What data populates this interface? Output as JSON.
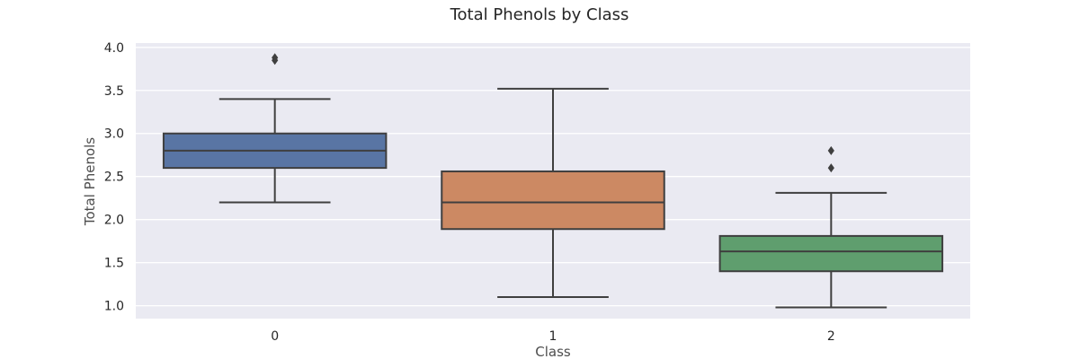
{
  "chart_data": {
    "type": "box",
    "title": "Total Phenols by Class",
    "xlabel": "Class",
    "ylabel": "Total Phenols",
    "categories": [
      "0",
      "1",
      "2"
    ],
    "ylim": [
      0.85,
      4.05
    ],
    "yticks": [
      "1.0",
      "1.5",
      "2.0",
      "2.5",
      "3.0",
      "3.5",
      "4.0"
    ],
    "grid": true,
    "boxes": [
      {
        "category": "0",
        "whisker_low": 2.2,
        "q1": 2.6,
        "median": 2.8,
        "q3": 3.0,
        "whisker_high": 3.4,
        "outliers": [
          3.85,
          3.88
        ],
        "color": "#5975a4"
      },
      {
        "category": "1",
        "whisker_low": 1.1,
        "q1": 1.89,
        "median": 2.2,
        "q3": 2.56,
        "whisker_high": 3.52,
        "outliers": [],
        "color": "#cc8963"
      },
      {
        "category": "2",
        "whisker_low": 0.98,
        "q1": 1.4,
        "median": 1.63,
        "q3": 1.81,
        "whisker_high": 2.31,
        "outliers": [
          2.6,
          2.8
        ],
        "color": "#5f9e6e"
      }
    ]
  }
}
